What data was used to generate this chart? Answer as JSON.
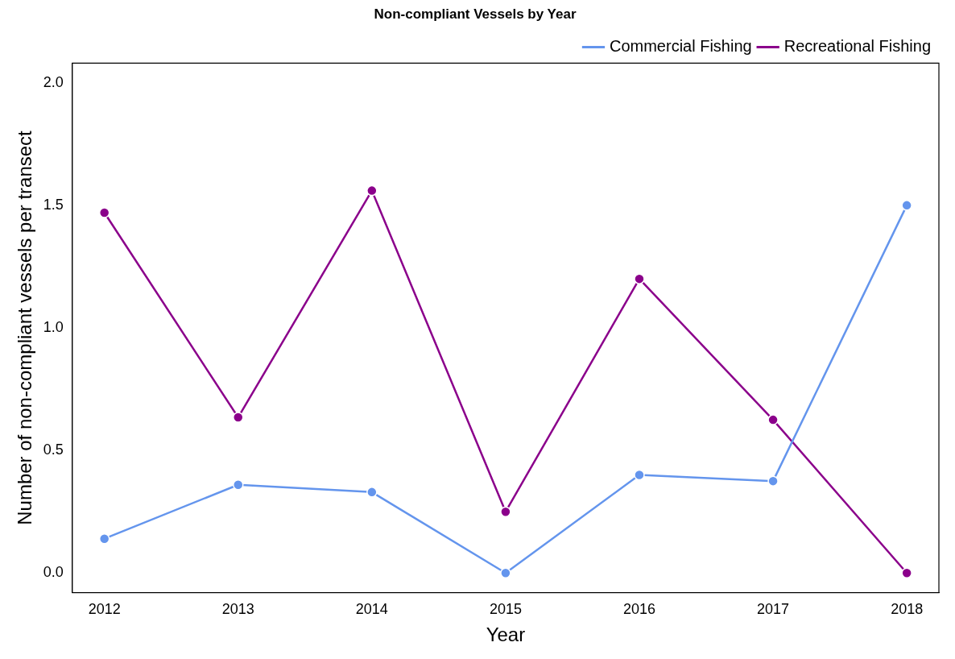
{
  "chart_data": {
    "type": "line",
    "title": "Non-compliant Vessels by Year",
    "xlabel": "Year",
    "ylabel": "Number of non-compliant vessels per transect",
    "x": [
      2012,
      2013,
      2014,
      2015,
      2016,
      2017,
      2018
    ],
    "series": [
      {
        "name": "Commercial Fishing",
        "color": "#6495ed",
        "values": [
          0.14,
          0.36,
          0.33,
          0,
          0.4,
          0.375,
          1.5
        ]
      },
      {
        "name": "Recreational Fishing",
        "color": "#8b008b",
        "values": [
          1.47,
          0.635,
          1.56,
          0.25,
          1.2,
          0.625,
          0
        ]
      }
    ],
    "xlim": [
      2011.76,
      2018.24
    ],
    "xticks": [
      2012,
      2013,
      2014,
      2015,
      2016,
      2017,
      2018
    ],
    "ylim": [
      -0.08,
      2.08
    ],
    "yticks": [
      {
        "value": 0,
        "label": "0.0"
      },
      {
        "value": 0.5,
        "label": "0.5"
      },
      {
        "value": 1,
        "label": "1.0"
      },
      {
        "value": 1.5,
        "label": "1.5"
      },
      {
        "value": 2,
        "label": "2.0"
      }
    ],
    "grid": false,
    "legend": "top right",
    "marker": "circle",
    "line_style": "solid"
  }
}
